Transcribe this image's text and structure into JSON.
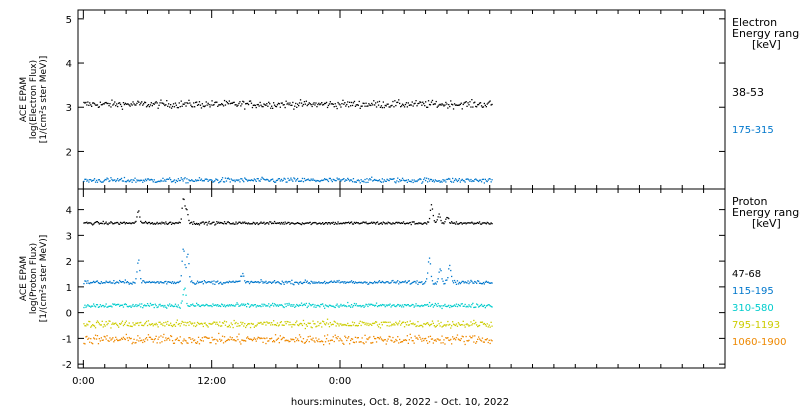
{
  "chart_data": [
    {
      "type": "scatter",
      "panel": "electron",
      "ylabel_lines": [
        "ACE EPAM",
        "log(Electron Flux)",
        "[1/(cm²s ster MeV)]"
      ],
      "legend_title": [
        "Electron",
        "Energy range",
        "[keV]"
      ],
      "ylim": [
        1.15,
        5.2
      ],
      "yticks": [
        2,
        3,
        4,
        5
      ],
      "xlim_hours": [
        -0.5,
        60.0
      ],
      "data_end_hours": 38.2,
      "series": [
        {
          "name": "38-53",
          "color": "#000000",
          "base": 3.08,
          "noise": 0.06,
          "events": []
        },
        {
          "name": "175-315",
          "color": "#0077cc",
          "base": 1.36,
          "noise": 0.04,
          "events": []
        }
      ]
    },
    {
      "type": "scatter",
      "panel": "proton",
      "ylabel_lines": [
        "ACE EPAM",
        "log(Proton Flux)",
        "[1/(cm²s ster MeV)]"
      ],
      "legend_title": [
        "Proton",
        "Energy range",
        "[keV]"
      ],
      "ylim": [
        -2.15,
        4.8
      ],
      "yticks": [
        -2,
        -1,
        0,
        1,
        2,
        3,
        4
      ],
      "xlim_hours": [
        -0.5,
        60.0
      ],
      "data_end_hours": 38.2,
      "series": [
        {
          "name": "47-68",
          "color": "#000000",
          "base": 3.5,
          "noise": 0.04,
          "events": [
            [
              5.1,
              0.45
            ],
            [
              9.3,
              0.95
            ],
            [
              9.6,
              0.55
            ],
            [
              32.5,
              0.7
            ],
            [
              33.2,
              0.3
            ],
            [
              34.0,
              0.25
            ]
          ]
        },
        {
          "name": "115-195",
          "color": "#0077cc",
          "base": 1.2,
          "noise": 0.05,
          "events": [
            [
              5.1,
              0.85
            ],
            [
              9.3,
              1.35
            ],
            [
              9.7,
              1.1
            ],
            [
              14.8,
              0.35
            ],
            [
              32.3,
              1.0
            ],
            [
              33.3,
              0.55
            ],
            [
              34.2,
              0.7
            ]
          ]
        },
        {
          "name": "310-580",
          "color": "#00cccc",
          "base": 0.3,
          "noise": 0.06,
          "events": [
            [
              9.4,
              0.7
            ]
          ]
        },
        {
          "name": "795-1193",
          "color": "#cccc00",
          "base": -0.42,
          "noise": 0.1,
          "events": []
        },
        {
          "name": "1060-1900",
          "color": "#ee8800",
          "base": -1.02,
          "noise": 0.13,
          "events": []
        }
      ]
    }
  ],
  "xaxis": {
    "ticks": [
      {
        "hours": 0,
        "label": "0:00"
      },
      {
        "hours": 12,
        "label": "12:00"
      },
      {
        "hours": 24,
        "label": "0:00"
      }
    ],
    "title": "hours:minutes, Oct.  8, 2022 - Oct. 10, 2022"
  }
}
